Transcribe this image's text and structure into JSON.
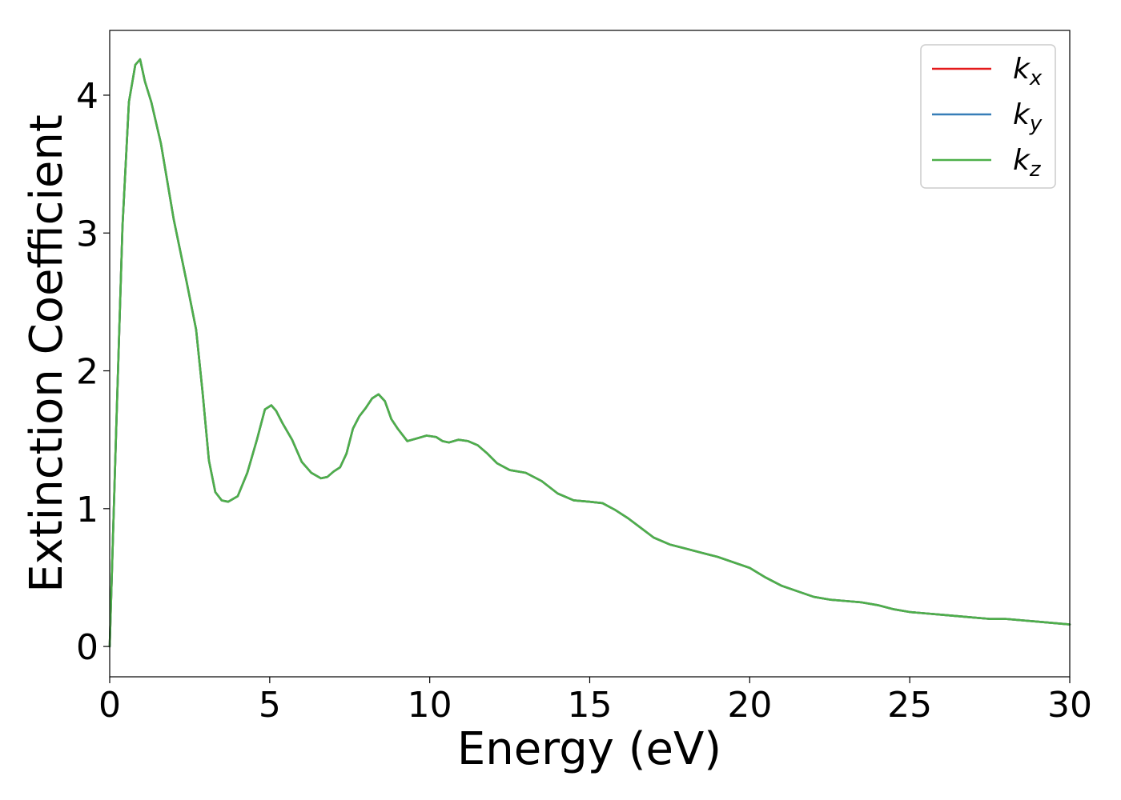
{
  "chart_data": {
    "type": "line",
    "xlabel": "Energy (eV)",
    "ylabel": "Extinction Coefficient",
    "xlim": [
      0,
      30
    ],
    "ylim": [
      -0.22,
      4.47
    ],
    "xticks": [
      0,
      5,
      10,
      15,
      20,
      25,
      30
    ],
    "yticks": [
      0,
      1,
      2,
      3,
      4
    ],
    "xtick_labels": [
      "0",
      "5",
      "10",
      "15",
      "20",
      "25",
      "30"
    ],
    "ytick_labels": [
      "0",
      "1",
      "2",
      "3",
      "4"
    ],
    "grid": false,
    "legend_position": "top-right",
    "x": [
      0,
      0.2,
      0.4,
      0.6,
      0.8,
      0.95,
      1.1,
      1.3,
      1.6,
      2.0,
      2.4,
      2.7,
      2.9,
      3.1,
      3.3,
      3.5,
      3.7,
      4.0,
      4.3,
      4.6,
      4.85,
      5.05,
      5.2,
      5.4,
      5.7,
      6.0,
      6.3,
      6.6,
      6.8,
      7.0,
      7.2,
      7.4,
      7.6,
      7.8,
      8.0,
      8.2,
      8.4,
      8.6,
      8.8,
      9.0,
      9.3,
      9.6,
      9.9,
      10.2,
      10.4,
      10.6,
      10.9,
      11.2,
      11.5,
      11.8,
      12.1,
      12.5,
      13.0,
      13.5,
      14.0,
      14.5,
      15.0,
      15.4,
      15.8,
      16.2,
      16.6,
      17.0,
      17.5,
      18.0,
      18.5,
      19.0,
      19.5,
      20.0,
      20.5,
      21.0,
      21.5,
      22.0,
      22.5,
      23.0,
      23.5,
      24.0,
      24.5,
      25.0,
      25.5,
      26.0,
      26.5,
      27.0,
      27.5,
      28.0,
      28.5,
      29.0,
      29.5,
      30.0
    ],
    "series": [
      {
        "name": "x",
        "color": "#e41a1c",
        "values": [
          0,
          1.55,
          3.05,
          3.95,
          4.22,
          4.26,
          4.1,
          3.95,
          3.65,
          3.1,
          2.65,
          2.3,
          1.85,
          1.35,
          1.12,
          1.06,
          1.05,
          1.09,
          1.26,
          1.5,
          1.72,
          1.75,
          1.71,
          1.62,
          1.5,
          1.34,
          1.26,
          1.22,
          1.23,
          1.27,
          1.3,
          1.4,
          1.58,
          1.67,
          1.73,
          1.8,
          1.83,
          1.78,
          1.65,
          1.58,
          1.49,
          1.51,
          1.53,
          1.52,
          1.49,
          1.48,
          1.5,
          1.49,
          1.46,
          1.4,
          1.33,
          1.28,
          1.26,
          1.2,
          1.11,
          1.06,
          1.05,
          1.04,
          0.99,
          0.93,
          0.86,
          0.79,
          0.74,
          0.71,
          0.68,
          0.65,
          0.61,
          0.57,
          0.5,
          0.44,
          0.4,
          0.36,
          0.34,
          0.33,
          0.32,
          0.3,
          0.27,
          0.25,
          0.24,
          0.23,
          0.22,
          0.21,
          0.2,
          0.2,
          0.19,
          0.18,
          0.17,
          0.16
        ]
      },
      {
        "name": "y",
        "color": "#377eb8",
        "values": [
          0,
          1.55,
          3.05,
          3.95,
          4.22,
          4.26,
          4.1,
          3.95,
          3.65,
          3.1,
          2.65,
          2.3,
          1.85,
          1.35,
          1.12,
          1.06,
          1.05,
          1.09,
          1.26,
          1.5,
          1.72,
          1.75,
          1.71,
          1.62,
          1.5,
          1.34,
          1.26,
          1.22,
          1.23,
          1.27,
          1.3,
          1.4,
          1.58,
          1.67,
          1.73,
          1.8,
          1.83,
          1.78,
          1.65,
          1.58,
          1.49,
          1.51,
          1.53,
          1.52,
          1.49,
          1.48,
          1.5,
          1.49,
          1.46,
          1.4,
          1.33,
          1.28,
          1.26,
          1.2,
          1.11,
          1.06,
          1.05,
          1.04,
          0.99,
          0.93,
          0.86,
          0.79,
          0.74,
          0.71,
          0.68,
          0.65,
          0.61,
          0.57,
          0.5,
          0.44,
          0.4,
          0.36,
          0.34,
          0.33,
          0.32,
          0.3,
          0.27,
          0.25,
          0.24,
          0.23,
          0.22,
          0.21,
          0.2,
          0.2,
          0.19,
          0.18,
          0.17,
          0.16
        ]
      },
      {
        "name": "z",
        "color": "#4daf4a",
        "values": [
          0,
          1.55,
          3.05,
          3.95,
          4.22,
          4.26,
          4.1,
          3.95,
          3.65,
          3.1,
          2.65,
          2.3,
          1.85,
          1.35,
          1.12,
          1.06,
          1.05,
          1.09,
          1.26,
          1.5,
          1.72,
          1.75,
          1.71,
          1.62,
          1.5,
          1.34,
          1.26,
          1.22,
          1.23,
          1.27,
          1.3,
          1.4,
          1.58,
          1.67,
          1.73,
          1.8,
          1.83,
          1.78,
          1.65,
          1.58,
          1.49,
          1.51,
          1.53,
          1.52,
          1.49,
          1.48,
          1.5,
          1.49,
          1.46,
          1.4,
          1.33,
          1.28,
          1.26,
          1.2,
          1.11,
          1.06,
          1.05,
          1.04,
          0.99,
          0.93,
          0.86,
          0.79,
          0.74,
          0.71,
          0.68,
          0.65,
          0.61,
          0.57,
          0.5,
          0.44,
          0.4,
          0.36,
          0.34,
          0.33,
          0.32,
          0.3,
          0.27,
          0.25,
          0.24,
          0.23,
          0.22,
          0.21,
          0.2,
          0.2,
          0.19,
          0.18,
          0.17,
          0.16
        ]
      }
    ],
    "legend": [
      {
        "base": "k",
        "sub": "x",
        "color": "#e41a1c"
      },
      {
        "base": "k",
        "sub": "y",
        "color": "#377eb8"
      },
      {
        "base": "k",
        "sub": "z",
        "color": "#4daf4a"
      }
    ]
  }
}
